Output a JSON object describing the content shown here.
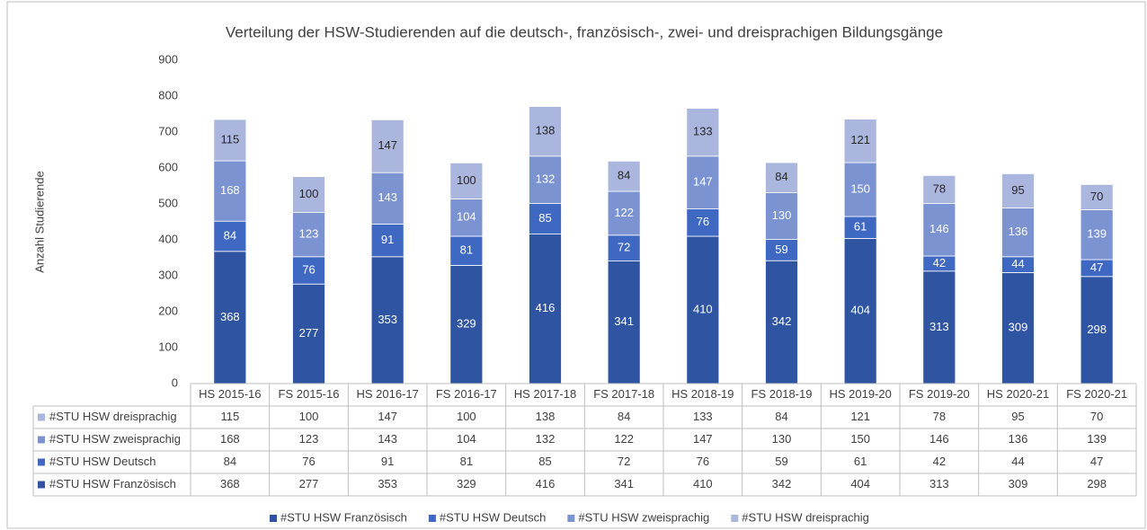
{
  "chart_data": {
    "type": "stacked_bar",
    "title": "Verteilung der HSW-Studierenden auf die deutsch-, französisch-, zwei- und dreisprachigen Bildungsgänge",
    "y_axis_label": "Anzahl Studierende",
    "categories": [
      "HS 2015-16",
      "FS 2015-16",
      "HS 2016-17",
      "FS 2016-17",
      "HS 2017-18",
      "FS 2017-18",
      "HS 2018-19",
      "FS 2018-19",
      "HS 2019-20",
      "FS 2019-20",
      "HS 2020-21",
      "FS 2020-21"
    ],
    "series": [
      {
        "name": "#STU HSW Französisch",
        "color": "#2f54a2",
        "values": [
          368,
          277,
          353,
          329,
          416,
          341,
          410,
          342,
          404,
          313,
          309,
          298
        ]
      },
      {
        "name": "#STU HSW Deutsch",
        "color": "#3f68c2",
        "values": [
          84,
          76,
          91,
          81,
          85,
          72,
          76,
          59,
          61,
          42,
          44,
          47
        ]
      },
      {
        "name": "#STU HSW zweisprachig",
        "color": "#7b93d1",
        "values": [
          168,
          123,
          143,
          104,
          132,
          122,
          147,
          130,
          150,
          146,
          136,
          139
        ]
      },
      {
        "name": "#STU HSW dreisprachig",
        "color": "#aab6de",
        "values": [
          115,
          100,
          147,
          100,
          138,
          84,
          133,
          84,
          121,
          78,
          95,
          70
        ]
      }
    ],
    "ylim": [
      0,
      900
    ],
    "yticks": [
      0,
      100,
      200,
      300,
      400,
      500,
      600,
      700,
      800,
      900
    ],
    "grid": false
  }
}
